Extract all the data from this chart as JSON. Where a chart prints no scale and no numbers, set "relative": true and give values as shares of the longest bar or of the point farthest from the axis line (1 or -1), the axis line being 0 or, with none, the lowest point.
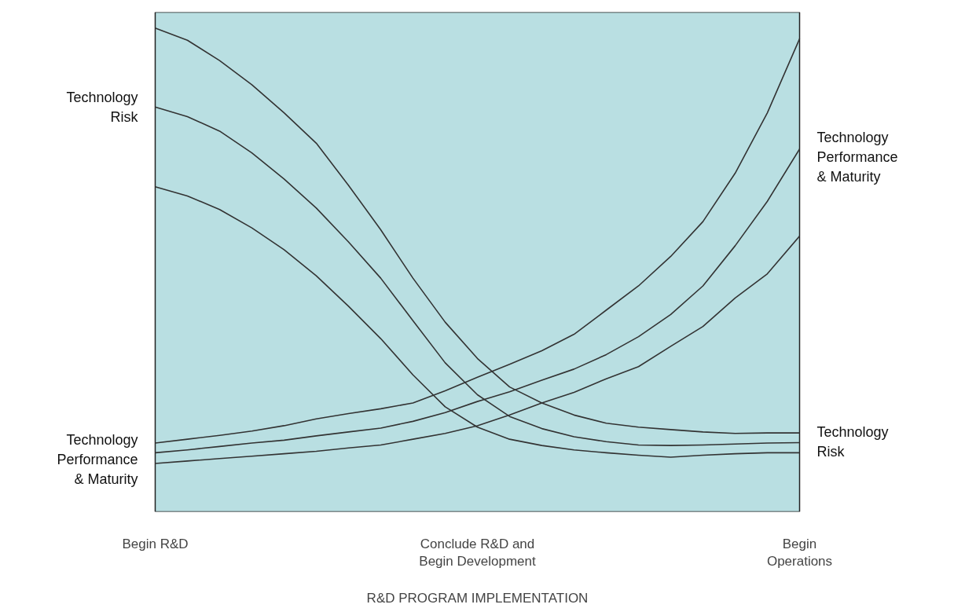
{
  "chart_data": {
    "type": "line",
    "relative": true,
    "xlabel": "R&D PROGRAM IMPLEMENTATION",
    "categories": [
      "Begin R&D",
      null,
      null,
      null,
      null,
      null,
      null,
      null,
      null,
      null,
      "Conclude R&D and\nBegin Development",
      null,
      null,
      null,
      null,
      null,
      null,
      null,
      null,
      null,
      "Begin\nOperations"
    ],
    "series": [
      {
        "color": "#333333",
        "values": [
          1.0,
          0.975,
          0.933,
          0.883,
          0.825,
          0.762,
          0.675,
          0.583,
          0.483,
          0.392,
          0.317,
          0.258,
          0.225,
          0.2,
          0.183,
          0.175,
          0.17,
          0.165,
          0.162,
          0.163,
          0.163
        ]
      },
      {
        "color": "#333333",
        "values": [
          0.837,
          0.817,
          0.787,
          0.742,
          0.688,
          0.628,
          0.558,
          0.483,
          0.395,
          0.308,
          0.242,
          0.197,
          0.172,
          0.155,
          0.145,
          0.138,
          0.137,
          0.138,
          0.14,
          0.142,
          0.143
        ]
      },
      {
        "color": "#333333",
        "values": [
          0.672,
          0.653,
          0.625,
          0.587,
          0.542,
          0.488,
          0.425,
          0.358,
          0.283,
          0.217,
          0.175,
          0.15,
          0.137,
          0.128,
          0.122,
          0.117,
          0.113,
          0.117,
          0.12,
          0.122,
          0.122
        ]
      },
      {
        "color": "#333333",
        "values": [
          0.142,
          0.15,
          0.158,
          0.167,
          0.178,
          0.192,
          0.203,
          0.213,
          0.225,
          0.25,
          0.278,
          0.305,
          0.333,
          0.367,
          0.417,
          0.467,
          0.528,
          0.6,
          0.7,
          0.825,
          0.978
        ]
      },
      {
        "color": "#333333",
        "values": [
          0.122,
          0.128,
          0.135,
          0.142,
          0.148,
          0.157,
          0.165,
          0.173,
          0.187,
          0.205,
          0.228,
          0.248,
          0.272,
          0.295,
          0.325,
          0.362,
          0.408,
          0.467,
          0.55,
          0.642,
          0.75
        ]
      },
      {
        "color": "#333333",
        "values": [
          0.1,
          0.105,
          0.11,
          0.115,
          0.12,
          0.125,
          0.132,
          0.138,
          0.15,
          0.162,
          0.178,
          0.2,
          0.225,
          0.247,
          0.275,
          0.3,
          0.342,
          0.383,
          0.442,
          0.492,
          0.57
        ]
      }
    ],
    "annotations": [
      {
        "text": "Technology\nRisk",
        "x": "Begin R&D",
        "y": 0.837
      },
      {
        "text": "Technology\nPerformance\n& Maturity",
        "x": "Begin R&D",
        "y": 0.108
      },
      {
        "text": "Technology\nPerformance\n& Maturity",
        "x": "Begin\nOperations",
        "y": 0.733
      },
      {
        "text": "Technology\nRisk",
        "x": "Begin\nOperations",
        "y": 0.145
      }
    ]
  }
}
